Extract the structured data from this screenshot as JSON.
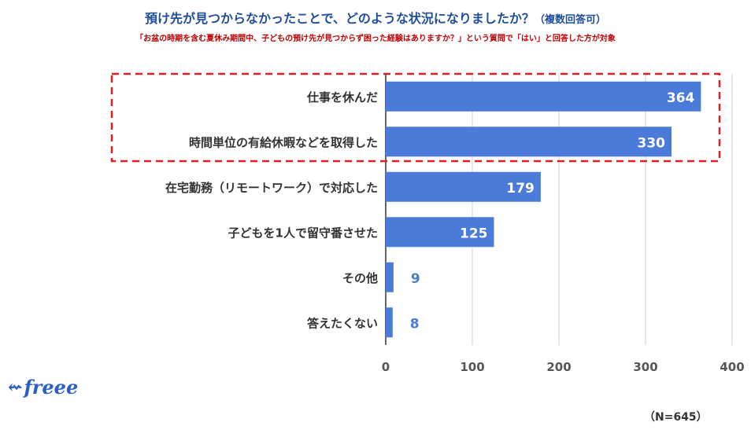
{
  "header": {
    "title": "預け先が見つからなかったことで、どのような状況になりましたか？",
    "title_suffix": "（複数回答可）",
    "subtitle": "「お盆の時期を含む夏休み期間中、子どもの預け先が見つからず困った経験はありますか？」という質問で「はい」と回答した方が対象"
  },
  "chart_data": {
    "type": "bar",
    "orientation": "horizontal",
    "title": "預け先が見つからなかったことで、どのような状況になりましたか？（複数回答可）",
    "categories": [
      "仕事を休んだ",
      "時間単位の有給休暇などを取得した",
      "在宅勤務（リモートワーク）で対応した",
      "子どもを1人で留守番させた",
      "その他",
      "答えたくない"
    ],
    "values": [
      364,
      330,
      179,
      125,
      9,
      8
    ],
    "value_labels": [
      "364",
      "330",
      "179",
      "125",
      "9",
      "8"
    ],
    "xlim": [
      0,
      400
    ],
    "xticks": [
      0,
      100,
      200,
      300,
      400
    ],
    "xtick_labels": [
      "0",
      "100",
      "200",
      "300",
      "400"
    ],
    "grid": true,
    "highlighted_categories": [
      0,
      1
    ],
    "colors": {
      "bar": "#4a7bd8",
      "label_inside": "#ffffff",
      "label_outside": "#4a7bd8",
      "highlight": "#e02020",
      "grid": "#d0d0d0"
    }
  },
  "footer": {
    "logo_text": "freee",
    "logo_icon": "freee-swallow-icon",
    "sample_note": "（N=645）"
  }
}
